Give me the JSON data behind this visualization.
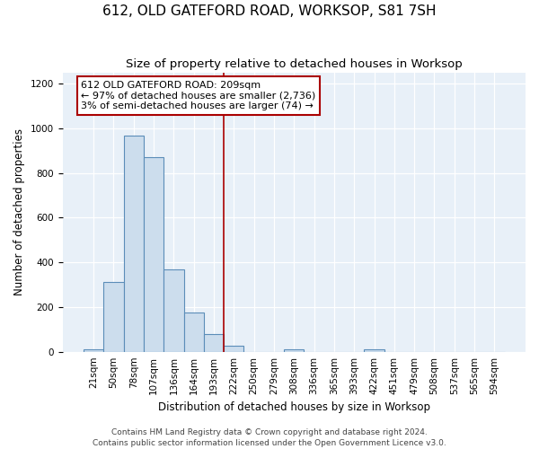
{
  "title": "612, OLD GATEFORD ROAD, WORKSOP, S81 7SH",
  "subtitle": "Size of property relative to detached houses in Worksop",
  "xlabel": "Distribution of detached houses by size in Worksop",
  "ylabel": "Number of detached properties",
  "footnote1": "Contains HM Land Registry data © Crown copyright and database right 2024.",
  "footnote2": "Contains public sector information licensed under the Open Government Licence v3.0.",
  "annotation_line1": "612 OLD GATEFORD ROAD: 209sqm",
  "annotation_line2": "← 97% of detached houses are smaller (2,736)",
  "annotation_line3": "3% of semi-detached houses are larger (74) →",
  "bin_labels": [
    "21sqm",
    "50sqm",
    "78sqm",
    "107sqm",
    "136sqm",
    "164sqm",
    "193sqm",
    "222sqm",
    "250sqm",
    "279sqm",
    "308sqm",
    "336sqm",
    "365sqm",
    "393sqm",
    "422sqm",
    "451sqm",
    "479sqm",
    "508sqm",
    "537sqm",
    "565sqm",
    "594sqm"
  ],
  "bar_values": [
    12,
    312,
    966,
    870,
    370,
    175,
    80,
    25,
    0,
    0,
    12,
    0,
    0,
    0,
    12,
    0,
    0,
    0,
    0,
    0,
    0
  ],
  "bar_color": "#ccdded",
  "bar_edge_color": "#5b8db8",
  "red_line_bin": 7,
  "ylim": [
    0,
    1250
  ],
  "yticks": [
    0,
    200,
    400,
    600,
    800,
    1000,
    1200
  ],
  "background_color": "#e8f0f8",
  "annotation_box_color": "white",
  "annotation_box_edge": "#aa0000",
  "red_line_color": "#aa0000",
  "title_fontsize": 11,
  "subtitle_fontsize": 9.5,
  "axis_label_fontsize": 8.5,
  "tick_fontsize": 7.5,
  "annotation_fontsize": 8,
  "footnote_fontsize": 6.5
}
